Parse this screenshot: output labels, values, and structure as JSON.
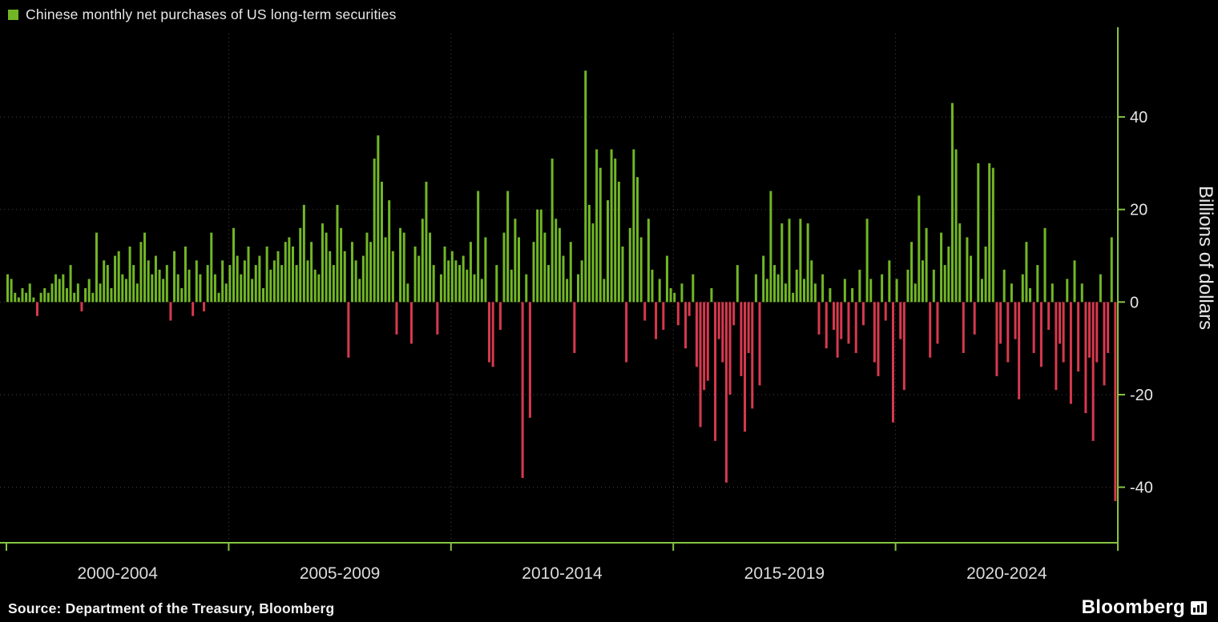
{
  "legend": {
    "label": "Chinese monthly net purchases of US long-term securities"
  },
  "footer": {
    "source": "Source: Department of the Treasury, Bloomberg",
    "brand": "Bloomberg"
  },
  "chart_data": {
    "type": "bar",
    "title": "Chinese monthly net purchases of US long-term securities",
    "ylabel": "Billions of dollars",
    "unit": "billions of US dollars",
    "frequency": "monthly",
    "x_start": "2000-01",
    "x_end": "2024-12",
    "categories": [
      "2000-2004",
      "2005-2009",
      "2010-2014",
      "2015-2019",
      "2020-2024"
    ],
    "months_per_category": 60,
    "y_ticks": [
      40,
      20,
      0,
      -20,
      -40
    ],
    "ylim": [
      -52,
      58
    ],
    "grid": "dotted",
    "legend_position": "top-left",
    "colors": {
      "positive": "#72b626",
      "negative": "#d7394e",
      "axis": "#86c440",
      "grid": "#454545",
      "text": "#e6e6e6",
      "background": "#000000"
    },
    "series": [
      {
        "name": "Chinese monthly net purchases of US long-term securities",
        "values": [
          6,
          5,
          2,
          1,
          3,
          2,
          4,
          1,
          -3,
          2,
          3,
          2,
          4,
          6,
          5,
          6,
          3,
          8,
          2,
          4,
          -2,
          3,
          5,
          2,
          15,
          4,
          9,
          8,
          3,
          10,
          11,
          6,
          5,
          12,
          8,
          4,
          13,
          15,
          9,
          6,
          10,
          7,
          5,
          8,
          -4,
          11,
          6,
          3,
          12,
          7,
          -3,
          9,
          6,
          -2,
          8,
          15,
          6,
          2,
          9,
          4,
          8,
          16,
          10,
          6,
          9,
          12,
          5,
          8,
          10,
          3,
          12,
          7,
          9,
          11,
          8,
          13,
          14,
          12,
          8,
          16,
          21,
          9,
          13,
          7,
          6,
          17,
          15,
          11,
          8,
          21,
          16,
          11,
          -12,
          13,
          9,
          5,
          10,
          15,
          13,
          31,
          36,
          26,
          14,
          22,
          11,
          -7,
          16,
          15,
          4,
          -9,
          12,
          10,
          18,
          26,
          15,
          8,
          -7,
          6,
          12,
          9,
          11,
          9,
          8,
          10,
          7,
          13,
          6,
          24,
          5,
          14,
          -13,
          -14,
          8,
          -6,
          15,
          24,
          7,
          18,
          14,
          -38,
          6,
          -25,
          13,
          20,
          20,
          15,
          8,
          31,
          18,
          16,
          10,
          5,
          13,
          -11,
          6,
          9,
          50,
          21,
          17,
          33,
          29,
          5,
          22,
          33,
          31,
          26,
          12,
          -13,
          16,
          33,
          27,
          14,
          -4,
          18,
          7,
          -8,
          5,
          -6,
          10,
          3,
          2,
          -5,
          4,
          -10,
          -3,
          6,
          -14,
          -27,
          -19,
          -17,
          3,
          -30,
          -8,
          -13,
          -39,
          -20,
          -5,
          8,
          -16,
          -28,
          -11,
          -23,
          6,
          -18,
          10,
          5,
          24,
          8,
          6,
          17,
          4,
          18,
          2,
          7,
          18,
          5,
          17,
          9,
          4,
          -7,
          6,
          -10,
          3,
          -6,
          -12,
          -8,
          5,
          -9,
          3,
          -11,
          7,
          -5,
          18,
          5,
          -13,
          -16,
          6,
          -4,
          9,
          -26,
          5,
          -8,
          -19,
          7,
          13,
          4,
          23,
          9,
          16,
          -12,
          7,
          -9,
          15,
          8,
          12,
          43,
          33,
          17,
          -11,
          14,
          10,
          -7,
          30,
          5,
          12,
          30,
          29,
          -16,
          -9,
          7,
          -13,
          4,
          -8,
          -21,
          6,
          13,
          3,
          -11,
          8,
          -14,
          16,
          -6,
          4,
          -19,
          -9,
          -13,
          5,
          -22,
          9,
          -15,
          4,
          -24,
          -12,
          -30,
          -13,
          6,
          -18,
          -11,
          14,
          -43
        ]
      }
    ]
  }
}
